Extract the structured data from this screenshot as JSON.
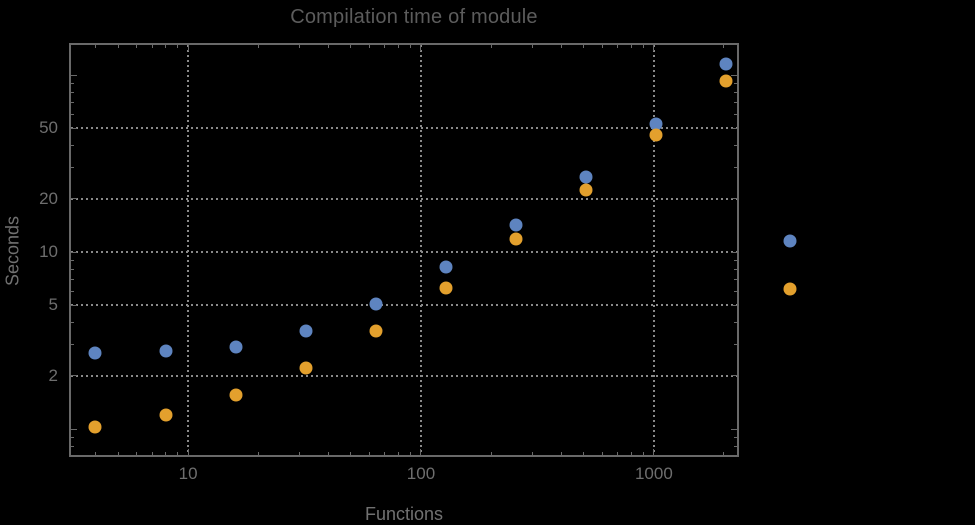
{
  "title": "Compilation time of module",
  "chart_data": {
    "type": "scatter",
    "title": "Compilation time of module",
    "xlabel": "Functions",
    "ylabel": "Seconds",
    "x_scale": "log",
    "y_scale": "log",
    "xlim": [
      3.08,
      2320
    ],
    "ylim": [
      0.695,
      152
    ],
    "grid": "dotted",
    "x": [
      4,
      8,
      16,
      32,
      64,
      128,
      256,
      512,
      1024,
      2048
    ],
    "series": [
      {
        "name": "series-1-blue",
        "color": "#5e84c0",
        "values": [
          2.7,
          2.75,
          2.9,
          3.6,
          5.1,
          8.2,
          14.2,
          26.5,
          53,
          115
        ]
      },
      {
        "name": "series-2-orange",
        "color": "#e3a02d",
        "values": [
          1.03,
          1.2,
          1.55,
          2.2,
          3.6,
          6.3,
          11.8,
          22.5,
          46,
          93
        ]
      }
    ],
    "x_major_ticks": [
      {
        "value": 10,
        "label": "10"
      },
      {
        "value": 100,
        "label": "100"
      },
      {
        "value": 1000,
        "label": "1000"
      }
    ],
    "x_minor_ticks": [
      4,
      5,
      6,
      7,
      8,
      9,
      20,
      30,
      40,
      50,
      60,
      70,
      80,
      90,
      200,
      300,
      400,
      500,
      600,
      700,
      800,
      900,
      2000
    ],
    "y_major_ticks": [
      {
        "value": 1,
        "label": ""
      },
      {
        "value": 2,
        "label": "2"
      },
      {
        "value": 5,
        "label": "5"
      },
      {
        "value": 10,
        "label": "10"
      },
      {
        "value": 20,
        "label": "20"
      },
      {
        "value": 50,
        "label": "50"
      },
      {
        "value": 100,
        "label": ""
      }
    ],
    "y_minor_ticks": [
      0.7,
      0.8,
      0.9,
      3,
      4,
      6,
      7,
      8,
      9,
      30,
      40,
      60,
      70,
      80,
      90
    ],
    "x_gridlines": [
      10,
      100,
      1000
    ],
    "y_gridlines": [
      2,
      5,
      10,
      20,
      50
    ],
    "legend_position": "right-outside"
  },
  "legend": {
    "items": [
      {
        "name": "legend-marker-blue",
        "color": "#5e84c0"
      },
      {
        "name": "legend-marker-orange",
        "color": "#e3a02d"
      }
    ]
  },
  "colors": {
    "background": "#000000",
    "frame": "#696969",
    "grid": "#8a8a8a",
    "tick_text": "#6e6e6e",
    "axis_label_text": "#717171",
    "title_text": "#5c5c5c",
    "series1": "#5e84c0",
    "series2": "#e3a02d"
  }
}
